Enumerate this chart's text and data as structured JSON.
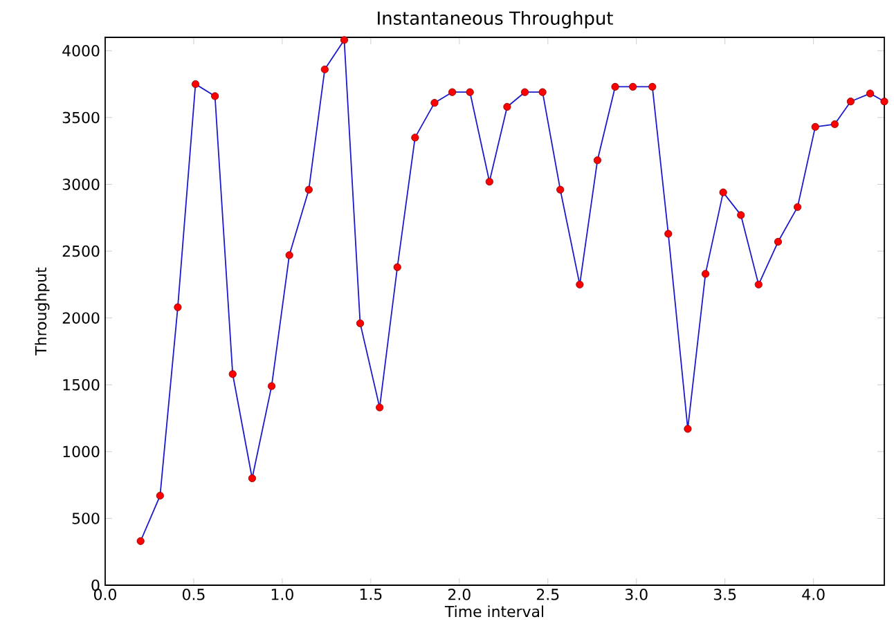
{
  "chart_data": {
    "type": "line",
    "title": "Instantaneous Throughput",
    "xlabel": "Time interval",
    "ylabel": "Throughput",
    "x": [
      0.2,
      0.31,
      0.41,
      0.51,
      0.62,
      0.72,
      0.83,
      0.94,
      1.04,
      1.15,
      1.24,
      1.35,
      1.44,
      1.55,
      1.65,
      1.75,
      1.86,
      1.96,
      2.06,
      2.17,
      2.27,
      2.37,
      2.47,
      2.57,
      2.68,
      2.78,
      2.88,
      2.98,
      3.09,
      3.18,
      3.29,
      3.39,
      3.49,
      3.59,
      3.69,
      3.8,
      3.91,
      4.01,
      4.12,
      4.21,
      4.32,
      4.4
    ],
    "series": [
      {
        "color": "#1a1acc",
        "values": [
          330,
          670,
          2080,
          3750,
          3660,
          1580,
          800,
          1490,
          2470,
          2960,
          3860,
          4080,
          1960,
          1330,
          2380,
          3350,
          3610,
          3690,
          3690,
          3020,
          3580,
          3690,
          3690,
          2960,
          2250,
          3180,
          3730,
          3730,
          3730,
          2630,
          1170,
          2330,
          2940,
          2770,
          2250,
          2570,
          2830,
          3430,
          3450,
          3620,
          3680,
          3620
        ]
      }
    ],
    "marker": "circle",
    "line_style": "solid",
    "grid": false,
    "xlim": [
      0,
      4.4
    ],
    "ylim": [
      0,
      4100
    ],
    "xticks": [
      {
        "value": 0,
        "label": "0.0"
      },
      {
        "value": 0.5,
        "label": "0.5"
      },
      {
        "value": 1,
        "label": "1.0"
      },
      {
        "value": 1.5,
        "label": "1.5"
      },
      {
        "value": 2,
        "label": "2.0"
      },
      {
        "value": 2.5,
        "label": "2.5"
      },
      {
        "value": 3,
        "label": "3.0"
      },
      {
        "value": 3.5,
        "label": "3.5"
      },
      {
        "value": 4,
        "label": "4.0"
      }
    ],
    "yticks": [
      0,
      500,
      1000,
      1500,
      2000,
      2500,
      3000,
      3500,
      4000
    ]
  }
}
